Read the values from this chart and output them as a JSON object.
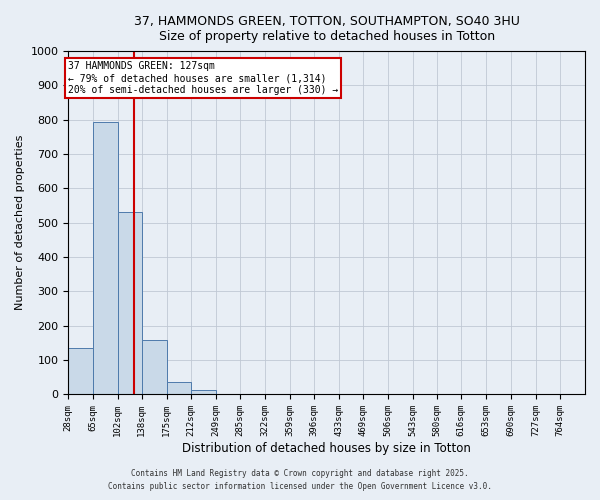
{
  "title": "37, HAMMONDS GREEN, TOTTON, SOUTHAMPTON, SO40 3HU",
  "subtitle": "Size of property relative to detached houses in Totton",
  "xlabel": "Distribution of detached houses by size in Totton",
  "ylabel": "Number of detached properties",
  "bar_edges": [
    28,
    65,
    102,
    138,
    175,
    212,
    249,
    285,
    322,
    359,
    396,
    433,
    469,
    506,
    543,
    580,
    616,
    653,
    690,
    727,
    764
  ],
  "bar_heights": [
    135,
    795,
    530,
    160,
    37,
    13,
    0,
    0,
    0,
    0,
    0,
    0,
    0,
    0,
    0,
    0,
    0,
    0,
    0,
    0
  ],
  "bar_color": "#c9d9e8",
  "bar_edge_color": "#4e7aab",
  "property_line_x": 127,
  "property_line_color": "#cc0000",
  "annotation_text": "37 HAMMONDS GREEN: 127sqm\n← 79% of detached houses are smaller (1,314)\n20% of semi-detached houses are larger (330) →",
  "annotation_box_color": "#ffffff",
  "annotation_box_edge_color": "#cc0000",
  "ylim": [
    0,
    1000
  ],
  "yticks": [
    0,
    100,
    200,
    300,
    400,
    500,
    600,
    700,
    800,
    900,
    1000
  ],
  "grid_color": "#c0c8d4",
  "bg_color": "#e8eef5",
  "footer_line1": "Contains HM Land Registry data © Crown copyright and database right 2025.",
  "footer_line2": "Contains public sector information licensed under the Open Government Licence v3.0."
}
